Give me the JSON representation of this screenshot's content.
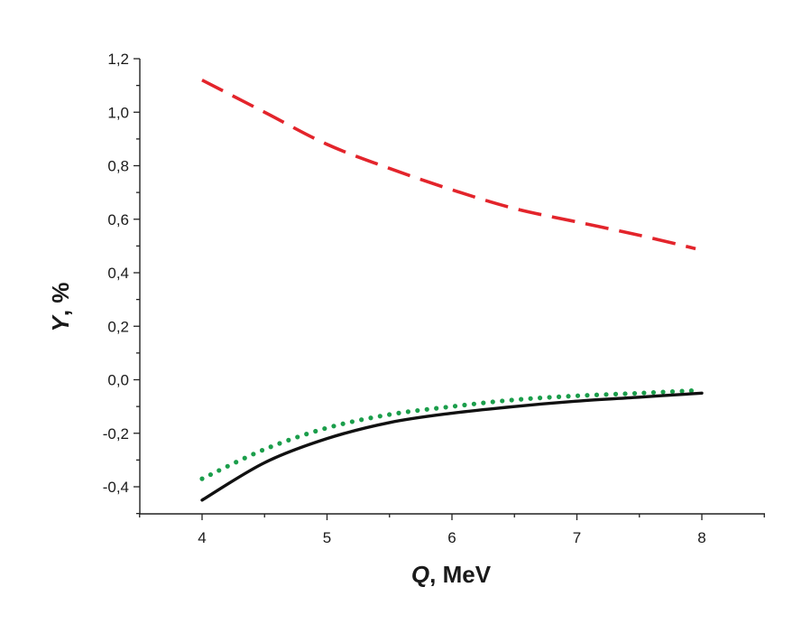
{
  "chart_data": {
    "type": "line",
    "title": "",
    "xlabel": {
      "symbol": "Q",
      "rest": ", MeV"
    },
    "ylabel": {
      "symbol": "Y",
      "rest": ", %"
    },
    "xlim": [
      3.5,
      8.5
    ],
    "ylim": [
      -0.5,
      1.2
    ],
    "x_ticks": [
      4,
      5,
      6,
      7,
      8
    ],
    "x_tick_labels": [
      "4",
      "5",
      "6",
      "7",
      "8"
    ],
    "y_ticks": [
      1.2,
      1.0,
      0.8,
      0.6,
      0.4,
      0.2,
      0.0,
      -0.2,
      -0.4
    ],
    "y_tick_labels": [
      "1,2",
      "1,0",
      "0,8",
      "0,6",
      "0,4",
      "0,2",
      "0,0",
      "-0,2",
      "-0,4"
    ],
    "grid": false,
    "series": [
      {
        "style": "dashed",
        "color": "#e3242b",
        "x": [
          4.0,
          4.5,
          5.0,
          5.5,
          6.0,
          6.5,
          7.0,
          7.5,
          7.95
        ],
        "values": [
          1.12,
          1.0,
          0.88,
          0.79,
          0.71,
          0.64,
          0.59,
          0.54,
          0.49
        ]
      },
      {
        "style": "dotted",
        "color": "#1b9e4b",
        "x": [
          4.0,
          4.5,
          5.0,
          5.5,
          6.0,
          6.5,
          7.0,
          7.5,
          7.95
        ],
        "values": [
          -0.37,
          -0.26,
          -0.18,
          -0.13,
          -0.1,
          -0.075,
          -0.06,
          -0.05,
          -0.04
        ]
      },
      {
        "style": "solid",
        "color": "#111111",
        "x": [
          4.0,
          4.5,
          5.0,
          5.5,
          6.0,
          6.5,
          7.0,
          7.5,
          8.0
        ],
        "values": [
          -0.45,
          -0.31,
          -0.22,
          -0.16,
          -0.125,
          -0.1,
          -0.08,
          -0.065,
          -0.05
        ]
      }
    ]
  }
}
